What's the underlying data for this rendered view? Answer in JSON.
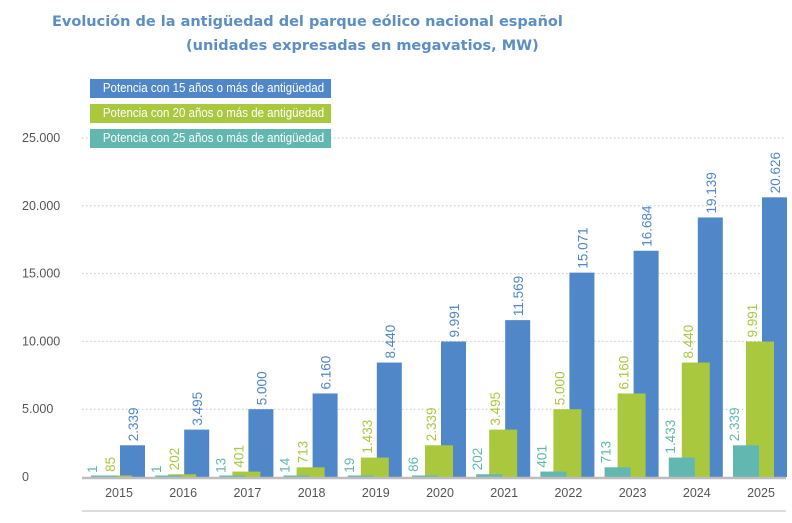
{
  "chart_data": {
    "type": "bar",
    "title": "Evolución de la antigüedad del parque eólico nacional español",
    "subtitle": "(unidades expresadas en megavatios, MW)",
    "xlabel": "",
    "ylabel": "",
    "categories": [
      "2015",
      "2016",
      "2017",
      "2018",
      "2019",
      "2020",
      "2021",
      "2022",
      "2023",
      "2024",
      "2025"
    ],
    "series": [
      {
        "name": "Potencia con 25 años o más de antigüedad",
        "color": "#63b7b1",
        "values": [
          1,
          1,
          13,
          14,
          19,
          86,
          202,
          401,
          713,
          1433,
          2339
        ],
        "labels": [
          "1",
          "1",
          "13",
          "14",
          "19",
          "86",
          "202",
          "401",
          "713",
          "1.433",
          "2.339"
        ]
      },
      {
        "name": "Potencia con 20 años o más de antigüedad",
        "color": "#a9c83e",
        "values": [
          85,
          202,
          401,
          713,
          1433,
          2339,
          3495,
          5000,
          6160,
          8440,
          9991
        ],
        "labels": [
          "85",
          "202",
          "401",
          "713",
          "1.433",
          "2.339",
          "3.495",
          "5.000",
          "6.160",
          "8.440",
          "9.991"
        ]
      },
      {
        "name": "Potencia con 15 años o más de antigüedad",
        "color": "#4f87c8",
        "values": [
          2339,
          3495,
          5000,
          6160,
          8440,
          9991,
          11569,
          15071,
          16684,
          19139,
          20626
        ],
        "labels": [
          "2.339",
          "3.495",
          "5.000",
          "6.160",
          "8.440",
          "9.991",
          "11.569",
          "15.071",
          "16.684",
          "19.139",
          "20.626"
        ]
      }
    ],
    "yticks": [
      0,
      5000,
      10000,
      15000,
      20000,
      25000
    ],
    "ytick_labels": [
      "0",
      "5.000",
      "10.000",
      "15.000",
      "20.000",
      "25.000"
    ],
    "ylim": [
      0,
      25000
    ],
    "grid": true,
    "legend_position": "top-left",
    "legend_order": [
      "Potencia con 15 años o más de antigüedad",
      "Potencia con 20 años o más de antigüedad",
      "Potencia con 25 años o más de antigüedad"
    ]
  },
  "colors": {
    "title": "#5b8ec7",
    "grid": "#c8c8c8",
    "axis": "#bdbdbd"
  }
}
